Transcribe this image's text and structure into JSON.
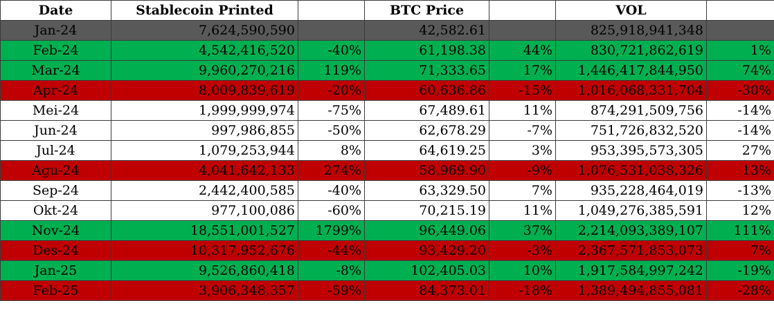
{
  "headers": [
    "Date",
    "Stablecoin Printed",
    "",
    "BTC Price",
    "",
    "VOL",
    ""
  ],
  "colors": {
    "gray": "#595959",
    "green": "#00b050",
    "red": "#c00000",
    "white": "#ffffff"
  },
  "rows": [
    {
      "date": "Jan-24",
      "printed": "7,624,590,590",
      "printed_pct": "",
      "btc": "42,582.61",
      "btc_pct": "",
      "vol": "825,918,941,348",
      "vol_pct": "",
      "style": "gray"
    },
    {
      "date": "Feb-24",
      "printed": "4,542,416,520",
      "printed_pct": "-40%",
      "btc": "61,198.38",
      "btc_pct": "44%",
      "vol": "830,721,862,619",
      "vol_pct": "1%",
      "style": "green"
    },
    {
      "date": "Mar-24",
      "printed": "9,960,270,216",
      "printed_pct": "119%",
      "btc": "71,333.65",
      "btc_pct": "17%",
      "vol": "1,446,417,844,950",
      "vol_pct": "74%",
      "style": "green"
    },
    {
      "date": "Apr-24",
      "printed": "8,009,839,619",
      "printed_pct": "-20%",
      "btc": "60,636.86",
      "btc_pct": "-15%",
      "vol": "1,016,068,331,704",
      "vol_pct": "-30%",
      "style": "red"
    },
    {
      "date": "Mei-24",
      "printed": "1,999,999,974",
      "printed_pct": "-75%",
      "btc": "67,489.61",
      "btc_pct": "11%",
      "vol": "874,291,509,756",
      "vol_pct": "-14%",
      "style": "white"
    },
    {
      "date": "Jun-24",
      "printed": "997,986,855",
      "printed_pct": "-50%",
      "btc": "62,678.29",
      "btc_pct": "-7%",
      "vol": "751,726,832,520",
      "vol_pct": "-14%",
      "style": "white"
    },
    {
      "date": "Jul-24",
      "printed": "1,079,253,944",
      "printed_pct": "8%",
      "btc": "64,619.25",
      "btc_pct": "3%",
      "vol": "953,395,573,305",
      "vol_pct": "27%",
      "style": "white"
    },
    {
      "date": "Agu-24",
      "printed": "4,041,642,133",
      "printed_pct": "274%",
      "btc": "58,969.90",
      "btc_pct": "-9%",
      "vol": "1,076,531,038,326",
      "vol_pct": "13%",
      "style": "red"
    },
    {
      "date": "Sep-24",
      "printed": "2,442,400,585",
      "printed_pct": "-40%",
      "btc": "63,329.50",
      "btc_pct": "7%",
      "vol": "935,228,464,019",
      "vol_pct": "-13%",
      "style": "white"
    },
    {
      "date": "Okt-24",
      "printed": "977,100,086",
      "printed_pct": "-60%",
      "btc": "70,215.19",
      "btc_pct": "11%",
      "vol": "1,049,276,385,591",
      "vol_pct": "12%",
      "style": "white"
    },
    {
      "date": "Nov-24",
      "printed": "18,551,001,527",
      "printed_pct": "1799%",
      "btc": "96,449.06",
      "btc_pct": "37%",
      "vol": "2,214,093,389,107",
      "vol_pct": "111%",
      "style": "green"
    },
    {
      "date": "Des-24",
      "printed": "10,317,952,676",
      "printed_pct": "-44%",
      "btc": "93,429.20",
      "btc_pct": "-3%",
      "vol": "2,367,571,853,073",
      "vol_pct": "7%",
      "style": "red"
    },
    {
      "date": "Jan-25",
      "printed": "9,526,860,418",
      "printed_pct": "-8%",
      "btc": "102,405.03",
      "btc_pct": "10%",
      "vol": "1,917,584,997,242",
      "vol_pct": "-19%",
      "style": "green"
    },
    {
      "date": "Feb-25",
      "printed": "3,906,348,357",
      "printed_pct": "-59%",
      "btc": "84,373.01",
      "btc_pct": "-18%",
      "vol": "1,389,494,855,081",
      "vol_pct": "-28%",
      "style": "red"
    }
  ]
}
